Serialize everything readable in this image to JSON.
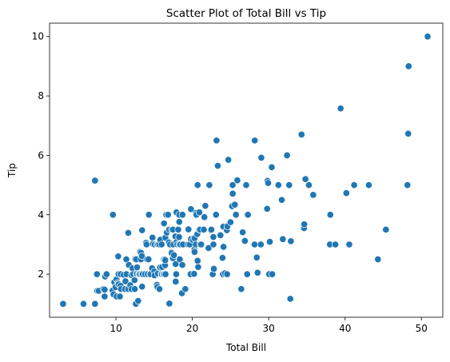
{
  "chart_data": {
    "type": "scatter",
    "title": "Scatter Plot of Total Bill vs Tip",
    "xlabel": "Total Bill",
    "ylabel": "Tip",
    "xlim": [
      1.3,
      52.8
    ],
    "ylim": [
      0.55,
      10.45
    ],
    "xticks": [
      "10",
      "20",
      "30",
      "40",
      "50"
    ],
    "yticks": [
      "2",
      "4",
      "6",
      "8",
      "10"
    ],
    "xtick_values": [
      10,
      20,
      30,
      40,
      50
    ],
    "ytick_values": [
      2,
      4,
      6,
      8,
      10
    ],
    "grid": false,
    "color": "#1f77b4",
    "points": [
      [
        3.07,
        1.0
      ],
      [
        5.75,
        1.0
      ],
      [
        7.25,
        1.0
      ],
      [
        7.25,
        5.15
      ],
      [
        7.51,
        2.0
      ],
      [
        7.56,
        1.44
      ],
      [
        7.74,
        1.44
      ],
      [
        8.35,
        1.5
      ],
      [
        8.51,
        1.25
      ],
      [
        8.52,
        1.48
      ],
      [
        8.58,
        1.92
      ],
      [
        8.77,
        2.0
      ],
      [
        9.55,
        1.45
      ],
      [
        9.6,
        4.0
      ],
      [
        9.68,
        1.32
      ],
      [
        9.78,
        1.73
      ],
      [
        9.94,
        1.56
      ],
      [
        10.07,
        1.25
      ],
      [
        10.07,
        1.83
      ],
      [
        10.27,
        1.71
      ],
      [
        10.29,
        2.6
      ],
      [
        10.33,
        1.67
      ],
      [
        10.33,
        2.0
      ],
      [
        10.34,
        1.66
      ],
      [
        10.34,
        2.0
      ],
      [
        10.51,
        1.25
      ],
      [
        10.59,
        1.61
      ],
      [
        10.63,
        2.0
      ],
      [
        10.65,
        1.5
      ],
      [
        11.02,
        1.98
      ],
      [
        11.17,
        1.5
      ],
      [
        11.24,
        1.76
      ],
      [
        11.35,
        2.5
      ],
      [
        11.38,
        2.0
      ],
      [
        11.59,
        1.5
      ],
      [
        11.61,
        3.39
      ],
      [
        11.69,
        2.31
      ],
      [
        11.87,
        1.63
      ],
      [
        12.02,
        1.97
      ],
      [
        12.03,
        1.5
      ],
      [
        12.16,
        2.2
      ],
      [
        12.26,
        2.0
      ],
      [
        12.43,
        1.8
      ],
      [
        12.46,
        1.5
      ],
      [
        12.48,
        2.52
      ],
      [
        12.54,
        2.5
      ],
      [
        12.6,
        1.0
      ],
      [
        12.66,
        2.5
      ],
      [
        12.69,
        2.0
      ],
      [
        12.74,
        2.01
      ],
      [
        12.76,
        2.23
      ],
      [
        12.9,
        1.1
      ],
      [
        13.0,
        2.0
      ],
      [
        13.03,
        2.0
      ],
      [
        13.13,
        2.0
      ],
      [
        13.16,
        2.75
      ],
      [
        13.27,
        2.5
      ],
      [
        13.28,
        2.72
      ],
      [
        13.37,
        2.0
      ],
      [
        13.39,
        2.61
      ],
      [
        13.42,
        1.58
      ],
      [
        13.42,
        3.48
      ],
      [
        13.51,
        2.0
      ],
      [
        13.81,
        2.0
      ],
      [
        13.94,
        3.06
      ],
      [
        14.0,
        3.0
      ],
      [
        14.07,
        2.5
      ],
      [
        14.15,
        2.0
      ],
      [
        14.26,
        2.5
      ],
      [
        14.31,
        4.0
      ],
      [
        14.48,
        2.0
      ],
      [
        14.52,
        2.0
      ],
      [
        14.73,
        2.2
      ],
      [
        14.78,
        3.23
      ],
      [
        14.83,
        3.02
      ],
      [
        15.01,
        2.09
      ],
      [
        15.04,
        1.96
      ],
      [
        15.06,
        3.0
      ],
      [
        15.36,
        1.64
      ],
      [
        15.38,
        3.0
      ],
      [
        15.42,
        1.57
      ],
      [
        15.48,
        2.02
      ],
      [
        15.53,
        3.0
      ],
      [
        15.69,
        1.5
      ],
      [
        15.69,
        3.0
      ],
      [
        15.77,
        2.23
      ],
      [
        15.81,
        3.16
      ],
      [
        15.95,
        2.0
      ],
      [
        15.98,
        2.03
      ],
      [
        15.98,
        3.0
      ],
      [
        16.0,
        2.0
      ],
      [
        16.04,
        2.24
      ],
      [
        16.21,
        2.0
      ],
      [
        16.27,
        2.5
      ],
      [
        16.29,
        3.71
      ],
      [
        16.31,
        2.0
      ],
      [
        16.4,
        2.5
      ],
      [
        16.43,
        2.3
      ],
      [
        16.45,
        2.47
      ],
      [
        16.47,
        3.23
      ],
      [
        16.49,
        2.0
      ],
      [
        16.58,
        4.0
      ],
      [
        16.66,
        3.4
      ],
      [
        16.82,
        4.0
      ],
      [
        16.93,
        3.07
      ],
      [
        16.97,
        3.5
      ],
      [
        16.99,
        1.01
      ],
      [
        17.07,
        3.0
      ],
      [
        17.26,
        2.74
      ],
      [
        17.29,
        2.71
      ],
      [
        17.31,
        3.5
      ],
      [
        17.46,
        2.54
      ],
      [
        17.47,
        3.5
      ],
      [
        17.51,
        3.0
      ],
      [
        17.59,
        2.64
      ],
      [
        17.78,
        3.27
      ],
      [
        17.81,
        2.34
      ],
      [
        17.82,
        1.75
      ],
      [
        17.89,
        2.0
      ],
      [
        17.92,
        3.08
      ],
      [
        17.92,
        4.08
      ],
      [
        18.04,
        3.0
      ],
      [
        18.15,
        3.5
      ],
      [
        18.24,
        3.76
      ],
      [
        18.26,
        3.25
      ],
      [
        18.28,
        4.0
      ],
      [
        18.29,
        3.0
      ],
      [
        18.29,
        3.76
      ],
      [
        18.35,
        2.5
      ],
      [
        18.43,
        3.0
      ],
      [
        18.64,
        1.36
      ],
      [
        18.69,
        2.31
      ],
      [
        18.71,
        4.0
      ],
      [
        18.78,
        3.0
      ],
      [
        19.08,
        1.5
      ],
      [
        19.44,
        3.0
      ],
      [
        19.49,
        3.51
      ],
      [
        19.65,
        3.0
      ],
      [
        19.77,
        2.0
      ],
      [
        19.81,
        4.19
      ],
      [
        19.82,
        3.18
      ],
      [
        20.08,
        3.15
      ],
      [
        20.23,
        2.01
      ],
      [
        20.27,
        2.83
      ],
      [
        20.29,
        2.75
      ],
      [
        20.29,
        3.21
      ],
      [
        20.45,
        3.0
      ],
      [
        20.49,
        4.06
      ],
      [
        20.53,
        4.0
      ],
      [
        20.65,
        3.35
      ],
      [
        20.69,
        2.45
      ],
      [
        20.69,
        5.0
      ],
      [
        20.76,
        2.24
      ],
      [
        20.9,
        3.5
      ],
      [
        20.92,
        4.08
      ],
      [
        21.01,
        3.5
      ],
      [
        21.01,
        3.0
      ],
      [
        21.16,
        3.0
      ],
      [
        21.5,
        3.5
      ],
      [
        21.58,
        3.92
      ],
      [
        21.7,
        4.3
      ],
      [
        22.12,
        2.88
      ],
      [
        22.23,
        5.0
      ],
      [
        22.42,
        3.48
      ],
      [
        22.49,
        3.5
      ],
      [
        22.67,
        2.0
      ],
      [
        22.75,
        3.25
      ],
      [
        22.76,
        3.0
      ],
      [
        22.82,
        2.18
      ],
      [
        23.1,
        4.0
      ],
      [
        23.17,
        6.5
      ],
      [
        23.33,
        5.65
      ],
      [
        23.68,
        3.31
      ],
      [
        23.95,
        2.55
      ],
      [
        24.01,
        2.0
      ],
      [
        24.06,
        3.6
      ],
      [
        24.08,
        2.92
      ],
      [
        24.27,
        2.03
      ],
      [
        24.52,
        3.48
      ],
      [
        24.55,
        2.0
      ],
      [
        24.59,
        3.61
      ],
      [
        24.71,
        5.85
      ],
      [
        25.0,
        3.75
      ],
      [
        25.21,
        4.29
      ],
      [
        25.28,
        5.0
      ],
      [
        25.29,
        4.71
      ],
      [
        25.56,
        4.34
      ],
      [
        25.71,
        4.0
      ],
      [
        25.89,
        5.16
      ],
      [
        26.41,
        1.5
      ],
      [
        26.59,
        3.41
      ],
      [
        26.86,
        3.14
      ],
      [
        26.88,
        3.12
      ],
      [
        27.05,
        5.0
      ],
      [
        27.18,
        2.0
      ],
      [
        27.2,
        4.0
      ],
      [
        27.28,
        4.0
      ],
      [
        28.15,
        3.0
      ],
      [
        28.17,
        6.5
      ],
      [
        28.44,
        2.56
      ],
      [
        28.55,
        2.05
      ],
      [
        28.97,
        3.0
      ],
      [
        29.03,
        5.92
      ],
      [
        29.8,
        4.2
      ],
      [
        29.85,
        5.14
      ],
      [
        29.93,
        5.07
      ],
      [
        30.06,
        2.0
      ],
      [
        30.14,
        3.09
      ],
      [
        30.4,
        5.6
      ],
      [
        30.46,
        2.0
      ],
      [
        31.27,
        5.0
      ],
      [
        31.71,
        4.5
      ],
      [
        31.85,
        3.18
      ],
      [
        32.4,
        6.0
      ],
      [
        32.68,
        5.0
      ],
      [
        32.83,
        1.17
      ],
      [
        32.9,
        3.11
      ],
      [
        34.3,
        6.7
      ],
      [
        34.63,
        3.55
      ],
      [
        34.65,
        3.68
      ],
      [
        34.81,
        5.2
      ],
      [
        35.26,
        5.0
      ],
      [
        35.83,
        4.67
      ],
      [
        38.01,
        3.0
      ],
      [
        38.07,
        4.0
      ],
      [
        38.73,
        3.0
      ],
      [
        39.42,
        7.58
      ],
      [
        40.17,
        4.73
      ],
      [
        40.55,
        3.0
      ],
      [
        41.19,
        5.0
      ],
      [
        43.11,
        5.0
      ],
      [
        44.3,
        2.5
      ],
      [
        45.35,
        3.5
      ],
      [
        48.17,
        5.0
      ],
      [
        48.27,
        6.73
      ],
      [
        48.33,
        9.0
      ],
      [
        50.81,
        10.0
      ]
    ]
  }
}
